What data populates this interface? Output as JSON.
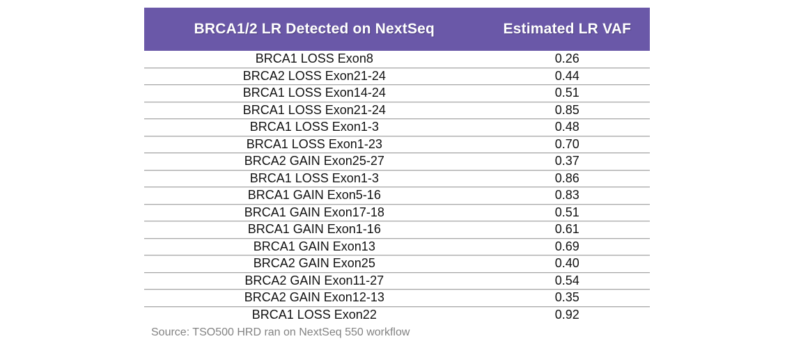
{
  "chart_data": {
    "type": "table",
    "columns": [
      "BRCA1/2 LR Detected on NextSeq",
      "Estimated LR VAF"
    ],
    "rows": [
      {
        "variant": "BRCA1 LOSS Exon8",
        "vaf": "0.26"
      },
      {
        "variant": "BRCA2 LOSS Exon21-24",
        "vaf": "0.44"
      },
      {
        "variant": "BRCA1 LOSS Exon14-24",
        "vaf": "0.51"
      },
      {
        "variant": "BRCA1 LOSS Exon21-24",
        "vaf": "0.85"
      },
      {
        "variant": "BRCA1 LOSS Exon1-3",
        "vaf": "0.48"
      },
      {
        "variant": "BRCA1 LOSS Exon1-23",
        "vaf": "0.70"
      },
      {
        "variant": "BRCA2 GAIN Exon25-27",
        "vaf": "0.37"
      },
      {
        "variant": "BRCA1 LOSS Exon1-3",
        "vaf": "0.86"
      },
      {
        "variant": "BRCA1 GAIN Exon5-16",
        "vaf": "0.83"
      },
      {
        "variant": "BRCA1 GAIN Exon17-18",
        "vaf": "0.51"
      },
      {
        "variant": "BRCA1 GAIN Exon1-16",
        "vaf": "0.61"
      },
      {
        "variant": "BRCA1 GAIN Exon13",
        "vaf": "0.69"
      },
      {
        "variant": "BRCA2 GAIN Exon25",
        "vaf": "0.40"
      },
      {
        "variant": "BRCA2 GAIN Exon11-27",
        "vaf": "0.54"
      },
      {
        "variant": "BRCA2 GAIN Exon12-13",
        "vaf": "0.35"
      },
      {
        "variant": "BRCA1 LOSS Exon22",
        "vaf": "0.92"
      }
    ],
    "source": "Source: TSO500 HRD ran on NextSeq 550 workflow",
    "layout_hints": {
      "header_position": "top",
      "grid": "horizontal-dividers-only",
      "value_format": "two-decimal fraction (VAF 0-1)"
    }
  },
  "colors": {
    "header_bg": "#6a58a8",
    "header_text": "#ffffff",
    "divider": "#a9a9a9",
    "body_text": "#111111",
    "source_text": "#838383",
    "background": "#ffffff"
  }
}
